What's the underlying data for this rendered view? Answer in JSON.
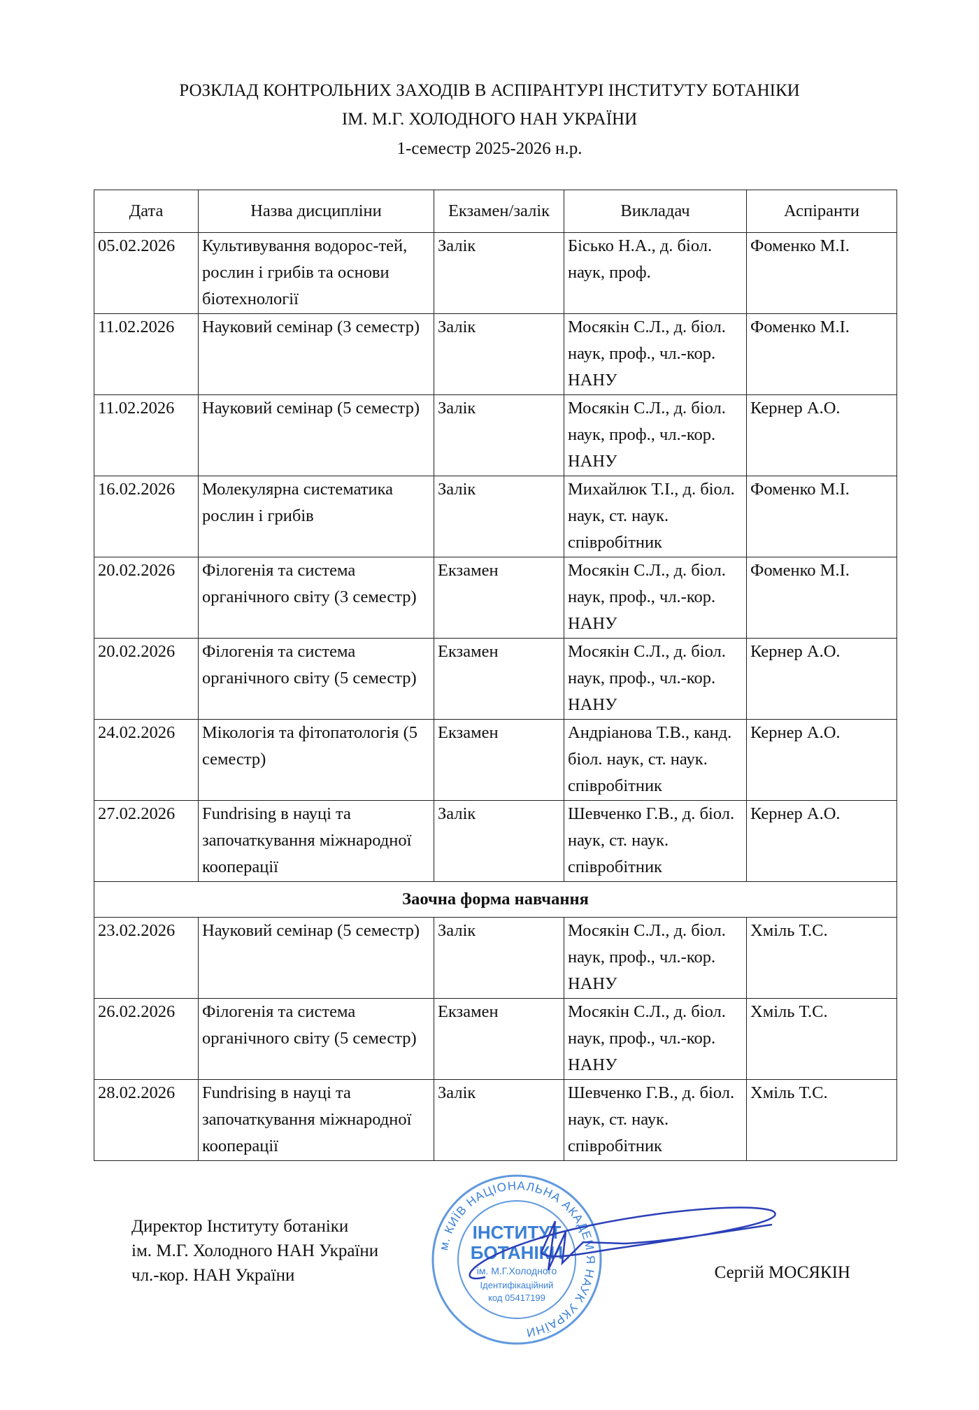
{
  "header": {
    "title_line1": "РОЗКЛАД КОНТРОЛЬНИХ ЗАХОДІВ В АСПІРАНТУРІ ІНСТИТУТУ БОТАНІКИ",
    "title_line2": "ІМ. М.Г. ХОЛОДНОГО НАН УКРАЇНИ",
    "subtitle": "1-семестр 2025-2026 н.р."
  },
  "table": {
    "columns": [
      "Дата",
      "Назва дисципліни",
      "Екзамен/залік",
      "Викладач",
      "Аспіранти"
    ],
    "rows": [
      [
        "05.02.2026",
        "Культивування водорос-тей, рослин і грибів та основи біотехнології",
        "Залік",
        "Бісько Н.А., д. біол. наук, проф.",
        "Фоменко М.І."
      ],
      [
        "11.02.2026",
        "Науковий семінар (3 семестр)",
        "Залік",
        "Мосякін С.Л., д. біол. наук, проф., чл.-кор. НАНУ",
        "Фоменко М.І."
      ],
      [
        "11.02.2026",
        "Науковий семінар (5 семестр)",
        "Залік",
        "Мосякін С.Л., д. біол. наук, проф., чл.-кор. НАНУ",
        "Кернер А.О."
      ],
      [
        "16.02.2026",
        "Молекулярна систематика рослин і грибів",
        "Залік",
        "Михайлюк Т.І., д. біол. наук, ст. наук. співробітник",
        "Фоменко М.І."
      ],
      [
        "20.02.2026",
        "Філогенія та система органічного світу (3 семестр)",
        "Екзамен",
        "Мосякін С.Л., д. біол. наук, проф., чл.-кор. НАНУ",
        "Фоменко М.І."
      ],
      [
        "20.02.2026",
        "Філогенія та система органічного світу (5 семестр)",
        "Екзамен",
        "Мосякін С.Л., д. біол. наук, проф., чл.-кор. НАНУ",
        "Кернер А.О."
      ],
      [
        "24.02.2026",
        "Мікологія та фітопатологія (5 семестр)",
        "Екзамен",
        "Андріанова Т.В., канд. біол. наук, ст. наук. співробітник",
        "Кернер А.О."
      ],
      [
        "27.02.2026",
        "Fundrising в науці та започаткування міжнародної кооперації",
        "Залік",
        "Шевченко Г.В., д. біол. наук, ст. наук. співробітник",
        "Кернер А.О."
      ]
    ],
    "section_title": "Заочна форма навчання",
    "section_rows": [
      [
        "23.02.2026",
        "Науковий семінар (5 семестр)",
        "Залік",
        "Мосякін С.Л., д. біол. наук, проф., чл.-кор. НАНУ",
        "Хміль Т.С."
      ],
      [
        "26.02.2026",
        "Філогенія та система органічного світу (5 семестр)",
        "Екзамен",
        "Мосякін С.Л., д. біол. наук, проф., чл.-кор. НАНУ",
        "Хміль Т.С."
      ],
      [
        "28.02.2026",
        "Fundrising в науці та започаткування міжнародної кооперації",
        "Залік",
        "Шевченко Г.В., д. біол. наук, ст. наук. співробітник",
        "Хміль Т.С."
      ]
    ]
  },
  "footer": {
    "position_line1": "Директор Інституту ботаніки",
    "position_line2": "ім. М.Г. Холодного НАН України",
    "position_line3": "чл.-кор. НАН України",
    "name": "Сергій МОСЯКІН",
    "stamp": {
      "ring_text": "м. КИЇВ НАЦІОНАЛЬНА АКАДЕМІЯ НАУК УКРАЇНИ",
      "line1": "ІНСТИТУТ",
      "line2": "БОТАНІКИ",
      "line3": "ім. М.Г.Холодного",
      "line4": "Ідентифікаційний",
      "line5": "код 05417199",
      "color": "#3a7fd6"
    },
    "signature_color": "#2a3fb8"
  }
}
